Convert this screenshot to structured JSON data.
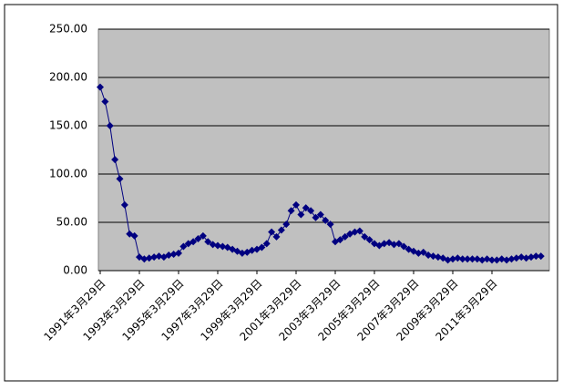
{
  "chart_data": {
    "type": "line",
    "categories": [
      "1991年3月29日",
      null,
      null,
      null,
      null,
      null,
      null,
      null,
      "1993年3月29日",
      null,
      null,
      null,
      null,
      null,
      null,
      null,
      "1995年3月29日",
      null,
      null,
      null,
      null,
      null,
      null,
      null,
      "1997年3月29日",
      null,
      null,
      null,
      null,
      null,
      null,
      null,
      "1999年3月29日",
      null,
      null,
      null,
      null,
      null,
      null,
      null,
      "2001年3月29日",
      null,
      null,
      null,
      null,
      null,
      null,
      null,
      "2003年3月29日",
      null,
      null,
      null,
      null,
      null,
      null,
      null,
      "2005年3月29日",
      null,
      null,
      null,
      null,
      null,
      null,
      null,
      "2007年3月29日",
      null,
      null,
      null,
      null,
      null,
      null,
      null,
      "2009年3月29日",
      null,
      null,
      null,
      null,
      null,
      null,
      null,
      "2011年3月29日",
      null,
      null,
      null,
      null,
      null,
      null,
      null,
      null,
      null,
      null
    ],
    "series": [
      {
        "color": "#000080",
        "values": [
          190,
          175,
          150,
          115,
          95,
          68,
          38,
          36,
          14,
          12,
          13,
          14,
          15,
          14,
          16,
          17,
          18,
          25,
          28,
          30,
          33,
          36,
          30,
          27,
          26,
          25,
          24,
          22,
          20,
          18,
          19,
          21,
          22,
          24,
          28,
          40,
          35,
          42,
          48,
          62,
          68,
          58,
          65,
          62,
          55,
          58,
          52,
          48,
          30,
          32,
          35,
          38,
          40,
          41,
          35,
          32,
          28,
          26,
          28,
          29,
          27,
          28,
          25,
          22,
          20,
          18,
          19,
          16,
          15,
          14,
          13,
          11,
          12,
          13,
          12,
          12,
          12,
          12,
          11,
          12,
          11,
          11,
          12,
          11,
          12,
          13,
          14,
          13,
          14,
          15,
          15
        ]
      }
    ],
    "ylim": [
      0,
      250
    ],
    "yticks": [
      {
        "value": 0,
        "label": "0.00"
      },
      {
        "value": 50,
        "label": "50.00"
      },
      {
        "value": 100,
        "label": "100.00"
      },
      {
        "value": 150,
        "label": "150.00"
      },
      {
        "value": 200,
        "label": "200.00"
      },
      {
        "value": 250,
        "label": "250.00"
      }
    ],
    "grid": true
  }
}
